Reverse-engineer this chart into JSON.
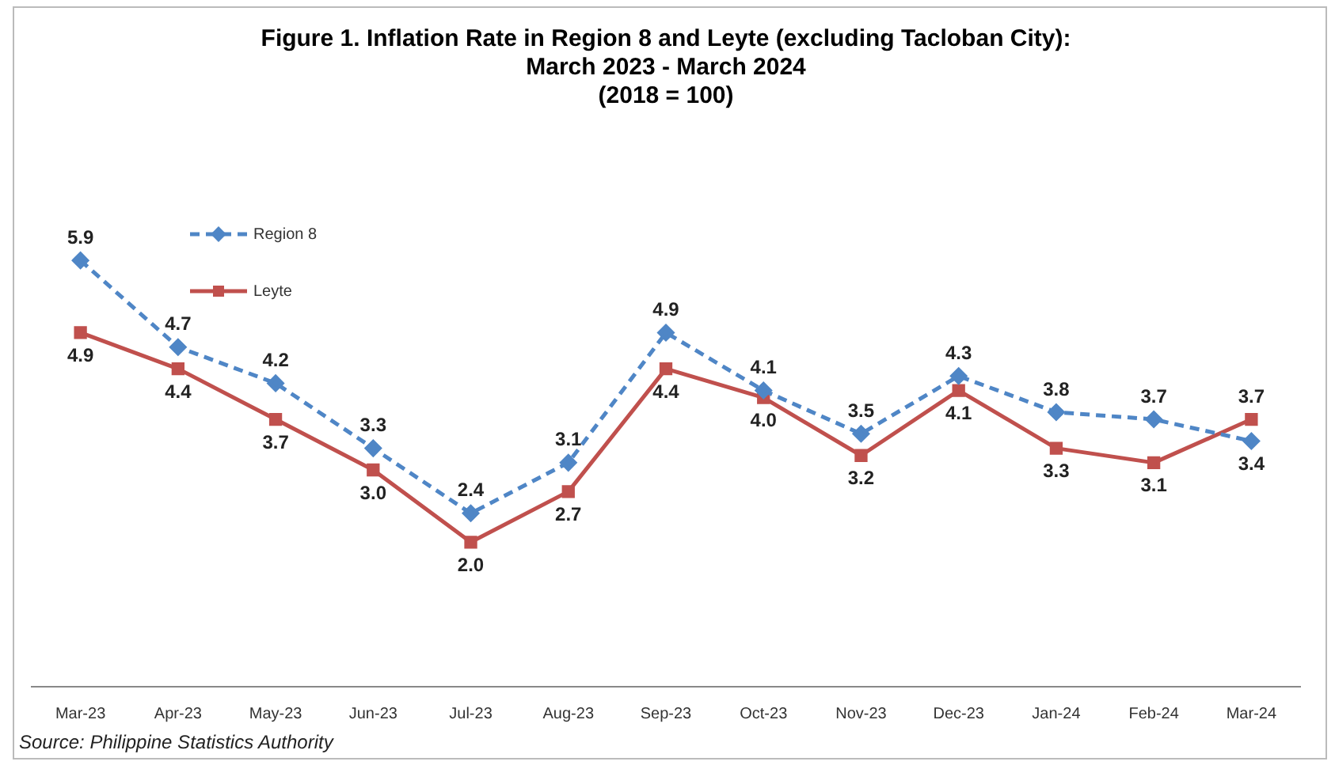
{
  "chart_data": {
    "type": "line",
    "title": "Figure 1. Inflation Rate in Region 8 and Leyte (excluding Tacloban City):\nMarch 2023 - March 2024\n(2018 = 100)",
    "categories": [
      "Mar-23",
      "Apr-23",
      "May-23",
      "Jun-23",
      "Jul-23",
      "Aug-23",
      "Sep-23",
      "Oct-23",
      "Nov-23",
      "Dec-23",
      "Jan-24",
      "Feb-24",
      "Mar-24"
    ],
    "series": [
      {
        "name": "Region 8",
        "color": "#4f86c6",
        "line_style": "dashed",
        "marker": "diamond",
        "values": [
          5.9,
          4.7,
          4.2,
          3.3,
          2.4,
          3.1,
          4.9,
          4.1,
          3.5,
          4.3,
          3.8,
          3.7,
          3.4
        ],
        "value_labels": [
          "5.9",
          "4.7",
          "4.2",
          "3.3",
          "2.4",
          "3.1",
          "4.9",
          "4.1",
          "3.5",
          "4.3",
          "3.8",
          "3.7",
          "3.4"
        ]
      },
      {
        "name": "Leyte",
        "color": "#c0504d",
        "line_style": "solid",
        "marker": "square",
        "values": [
          4.9,
          4.4,
          3.7,
          3.0,
          2.0,
          2.7,
          4.4,
          4.0,
          3.2,
          4.1,
          3.3,
          3.1,
          3.7
        ],
        "value_labels": [
          "4.9",
          "4.4",
          "3.7",
          "3.0",
          "2.0",
          "2.7",
          "4.4",
          "4.0",
          "3.2",
          "4.1",
          "3.3",
          "3.1",
          "3.7"
        ]
      }
    ],
    "legend": "top left",
    "grid": false,
    "annotations": [
      "Source: Philippine Statistics Authority"
    ]
  }
}
